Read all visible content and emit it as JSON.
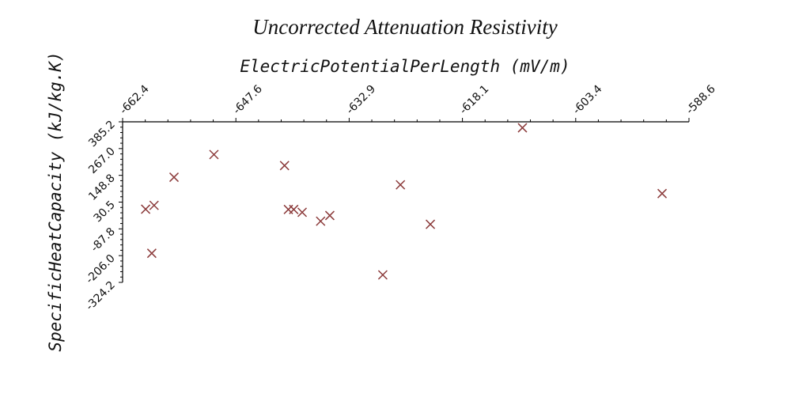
{
  "chart_data": {
    "type": "scatter",
    "title": "Uncorrected Attenuation Resistivity",
    "xlabel": "ElectricPotentialPerLength (mV/m)",
    "ylabel": "SpecificHeatCapacity (kJ/kg.K)",
    "xlim": [
      -662.4,
      -588.6
    ],
    "ylim": [
      -324.2,
      385.2
    ],
    "x_ticks": [
      "-662.4",
      "-647.6",
      "-632.9",
      "-618.1",
      "-603.4",
      "-588.6"
    ],
    "y_ticks": [
      "385.2",
      "267.0",
      "148.8",
      "30.5",
      "-87.8",
      "-206.0",
      "-324.2"
    ],
    "x_axis_position": "top",
    "grid": false,
    "marker": "x",
    "marker_color": "#8b3a3a",
    "points": [
      {
        "x": -659.4,
        "y": -0.7
      },
      {
        "x": -658.6,
        "y": -195.5
      },
      {
        "x": -658.3,
        "y": 16.0
      },
      {
        "x": -655.7,
        "y": 140.4
      },
      {
        "x": -650.5,
        "y": 240.7
      },
      {
        "x": -641.3,
        "y": 191.9
      },
      {
        "x": -640.8,
        "y": -2.1
      },
      {
        "x": -640.1,
        "y": -2.1
      },
      {
        "x": -639.0,
        "y": -14.6
      },
      {
        "x": -636.6,
        "y": -53.7
      },
      {
        "x": -635.4,
        "y": -28.6
      },
      {
        "x": -628.5,
        "y": -290.9
      },
      {
        "x": -626.2,
        "y": 106.9
      },
      {
        "x": -622.3,
        "y": -67.6
      },
      {
        "x": -610.3,
        "y": 358.7
      },
      {
        "x": -592.1,
        "y": 68.3
      }
    ]
  }
}
